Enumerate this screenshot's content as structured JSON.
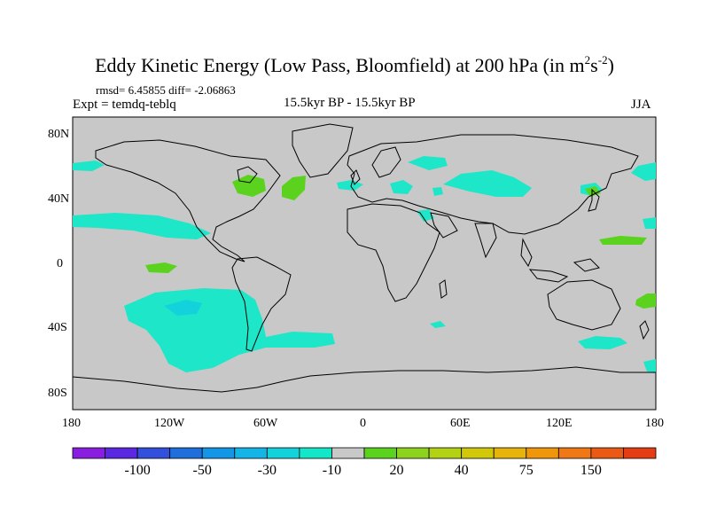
{
  "title": {
    "main": "Eddy Kinetic Energy (Low Pass, Bloomfield) at 200 hPa (in m",
    "sup1": "2",
    "mid": "s",
    "sup2": "-2",
    "end": ")"
  },
  "stats": "rmsd= 6.45855 diff= -2.06863",
  "expt": "Expt = temdq-teblq",
  "center_label": "15.5kyr BP - 15.5kyr BP",
  "season": "JJA",
  "y_ticks": [
    "80N",
    "40N",
    "0",
    "40S",
    "80S"
  ],
  "x_ticks": [
    "180",
    "120W",
    "60W",
    "0",
    "60E",
    "120E",
    "180"
  ],
  "colorbar": {
    "colors": [
      "#8a1ee0",
      "#5a28e0",
      "#3250dc",
      "#1e6edc",
      "#1496e6",
      "#14b4e6",
      "#14d2dc",
      "#14e6c8",
      "#c8c8c8",
      "#5ad21e",
      "#8cd21e",
      "#b4d214",
      "#d2c80a",
      "#e6b40a",
      "#f0960a",
      "#f07814",
      "#eb5a14",
      "#e63c14"
    ],
    "labels": [
      "-100",
      "-50",
      "-30",
      "-10",
      "20",
      "40",
      "75",
      "150"
    ]
  },
  "colors": {
    "background": "#c8c8c8",
    "negative": "#1ee6c8",
    "positive": "#5ad21e"
  }
}
